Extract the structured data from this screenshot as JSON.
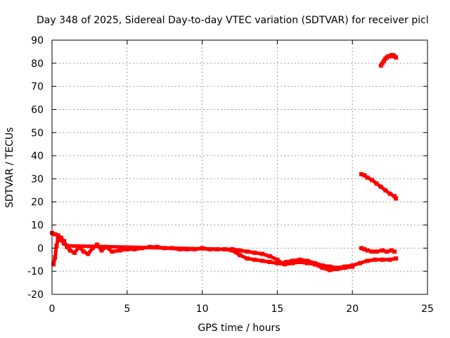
{
  "chart_data": {
    "type": "scatter",
    "title": "Day 348 of 2025, Sidereal Day-to-day VTEC variation (SDTVAR) for receiver picl",
    "xlabel": "GPS time / hours",
    "ylabel": "SDTVAR / TECUs",
    "xlim": [
      0,
      25
    ],
    "ylim": [
      -20,
      90
    ],
    "xticks": [
      0,
      5,
      10,
      15,
      20,
      25
    ],
    "yticks": [
      -20,
      -10,
      0,
      10,
      20,
      30,
      40,
      50,
      60,
      70,
      80,
      90
    ],
    "xtick_labels": [
      "0",
      "5",
      "10",
      "15",
      "20",
      "25"
    ],
    "ytick_labels": [
      "-20",
      "-10",
      "0",
      "10",
      "20",
      "30",
      "40",
      "50",
      "60",
      "70",
      "80",
      "90"
    ],
    "grid": true,
    "series_color": "#ff0000",
    "series": [
      {
        "name": "main-track-upper",
        "x": [
          0.0,
          0.2,
          0.4,
          0.6,
          0.8,
          1.0,
          1.2,
          1.5,
          1.8,
          2.1,
          2.4,
          2.7,
          3.0,
          3.3,
          3.6,
          4.0,
          4.5,
          5.0,
          5.5,
          6.0,
          6.5,
          7.0,
          7.5,
          8.0,
          8.5,
          9.0,
          9.5,
          10.0,
          10.5,
          11.0,
          11.5,
          12.0,
          12.5,
          13.0,
          13.5,
          14.0,
          14.5,
          15.0,
          15.3,
          15.6,
          16.0,
          16.5,
          17.0,
          17.5,
          18.0,
          18.5,
          19.0,
          19.5,
          20.0,
          20.5,
          21.0,
          21.5,
          22.0,
          22.5,
          22.9
        ],
        "y": [
          6.5,
          6.0,
          5.5,
          4.5,
          3.0,
          0.5,
          -1.0,
          -2.0,
          0.5,
          -1.5,
          -2.5,
          0.0,
          1.5,
          -1.0,
          0.5,
          -1.5,
          -1.0,
          -0.5,
          -0.5,
          0.0,
          0.5,
          0.5,
          0.0,
          0.0,
          -0.5,
          -0.5,
          -0.5,
          0.0,
          -0.5,
          -0.5,
          -0.5,
          -0.5,
          -1.0,
          -1.5,
          -2.0,
          -2.5,
          -3.5,
          -5.0,
          -6.5,
          -6.0,
          -5.5,
          -5.0,
          -5.5,
          -6.5,
          -7.5,
          -8.0,
          -8.5,
          -8.0,
          -7.5,
          -6.5,
          -5.5,
          -5.0,
          -5.0,
          -5.0,
          -4.5
        ]
      },
      {
        "name": "main-track-lower",
        "x": [
          0.1,
          0.2,
          0.3,
          0.4,
          0.6,
          0.8,
          1.0,
          11.5,
          12.0,
          12.5,
          13.0,
          13.5,
          14.0,
          14.5,
          15.0,
          15.5,
          16.0,
          16.5,
          17.0,
          17.5,
          18.0,
          18.5,
          19.0,
          19.5,
          20.0
        ],
        "y": [
          -7.0,
          -4.0,
          1.0,
          4.0,
          3.5,
          2.0,
          1.0,
          -0.5,
          -1.0,
          -3.0,
          -4.5,
          -5.0,
          -5.5,
          -6.0,
          -6.5,
          -7.0,
          -6.5,
          -6.0,
          -6.5,
          -7.0,
          -8.5,
          -9.5,
          -9.0,
          -8.5,
          -8.0
        ]
      },
      {
        "name": "late-low-arc",
        "x": [
          20.6,
          20.8,
          21.0,
          21.3,
          21.6,
          22.0,
          22.3,
          22.6,
          22.8
        ],
        "y": [
          0.0,
          -0.5,
          -1.0,
          -1.5,
          -1.5,
          -1.0,
          -1.5,
          -1.0,
          -1.5
        ]
      },
      {
        "name": "declining-arc",
        "x": [
          20.6,
          20.8,
          21.0,
          21.3,
          21.6,
          21.9,
          22.2,
          22.5,
          22.8,
          22.9
        ],
        "y": [
          32.0,
          31.5,
          30.5,
          29.5,
          28.0,
          26.5,
          25.0,
          23.5,
          22.5,
          21.5
        ]
      },
      {
        "name": "high-arc",
        "x": [
          21.9,
          22.0,
          22.1,
          22.2,
          22.3,
          22.4,
          22.5,
          22.6,
          22.7,
          22.8,
          22.9
        ],
        "y": [
          79.0,
          80.0,
          81.0,
          82.0,
          82.5,
          83.0,
          83.0,
          83.5,
          83.5,
          83.0,
          82.5
        ]
      }
    ]
  }
}
